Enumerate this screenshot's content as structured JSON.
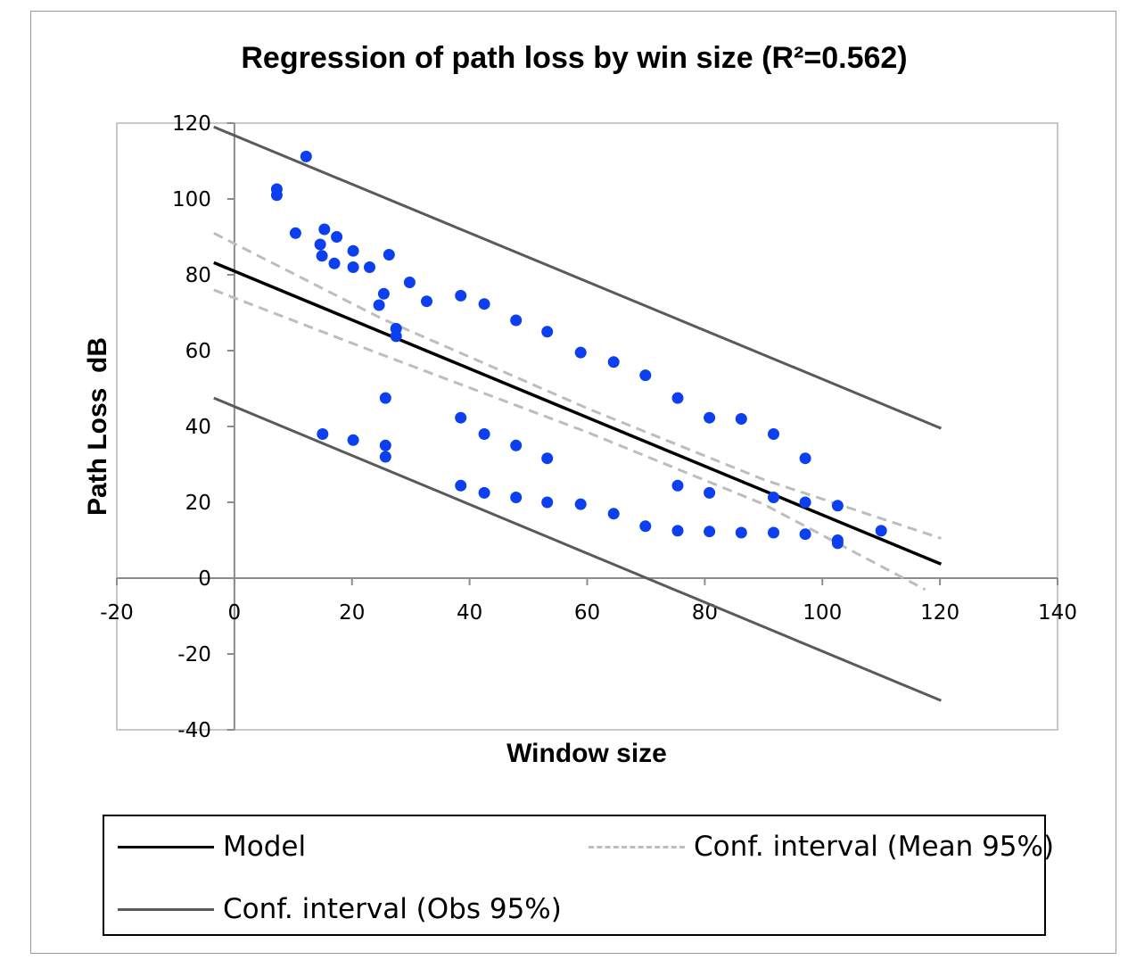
{
  "chart_data": {
    "type": "scatter",
    "title": "Regression of path loss by win size (R²=0.562)",
    "xlabel": "Window size",
    "ylabel": "Path Loss  dB",
    "xlim": [
      -20,
      140
    ],
    "ylim": [
      -40,
      120
    ],
    "xticks": [
      "-20",
      "0",
      "20",
      "40",
      "60",
      "80",
      "100",
      "120",
      "140"
    ],
    "yticks": [
      "-40",
      "-20",
      "0",
      "20",
      "40",
      "60",
      "80",
      "100",
      "120"
    ],
    "grid": false,
    "legend_position": "bottom",
    "series": [
      {
        "kind": "points",
        "color": "#0b3ff0",
        "x": [
          7.2,
          7.2,
          12.2,
          10.4,
          15.3,
          14.6,
          14.9,
          17.4,
          17.0,
          20.2,
          20.2,
          23.0,
          26.3,
          25.4,
          24.6,
          29.8,
          27.5,
          27.5,
          32.7,
          38.5,
          42.5,
          47.9,
          53.2,
          58.9,
          64.5,
          69.9,
          75.4,
          80.8,
          86.2,
          91.7,
          97.1,
          25.7,
          15.0,
          20.2,
          25.7,
          25.7,
          38.5,
          42.5,
          47.9,
          53.2,
          38.5,
          42.5,
          47.9,
          53.2,
          58.9,
          64.5,
          69.9,
          75.4,
          80.8,
          86.2,
          91.7,
          97.1,
          102.6,
          102.6,
          75.4,
          80.8,
          91.7,
          97.1,
          102.6,
          110.0
        ],
        "y": [
          102.6,
          101.0,
          111.2,
          91.0,
          92.0,
          88.0,
          85.0,
          90.0,
          83.0,
          86.3,
          82.0,
          82.0,
          85.3,
          75.0,
          72.0,
          78.0,
          65.8,
          63.8,
          73.0,
          74.5,
          72.3,
          68.0,
          65.0,
          59.5,
          57.0,
          53.5,
          47.5,
          42.3,
          42.0,
          38.0,
          31.6,
          47.5,
          38.0,
          36.4,
          35.0,
          32.0,
          42.3,
          38.0,
          35.0,
          31.6,
          24.4,
          22.5,
          21.3,
          20.0,
          19.5,
          17.0,
          13.7,
          12.5,
          12.3,
          12.0,
          12.0,
          11.6,
          10.0,
          9.2,
          24.4,
          22.5,
          21.3,
          20.0,
          19.1,
          12.5
        ]
      },
      {
        "name": "Model",
        "kind": "line",
        "color": "#000000",
        "dash": "solid",
        "x": [
          -3.5,
          120.2
        ],
        "y": [
          83.2,
          3.7
        ]
      },
      {
        "name": "Conf. interval (Mean 95%)",
        "kind": "line",
        "color": "#bdbdbd",
        "dash": "dashed",
        "x": [
          -3.5,
          25,
          60,
          90,
          120.2
        ],
        "y": [
          91.0,
          68.5,
          44.8,
          26.0,
          10.5
        ]
      },
      {
        "name": "",
        "kind": "line",
        "color": "#bdbdbd",
        "dash": "dashed",
        "x": [
          -3.5,
          25,
          60,
          90,
          117.5
        ],
        "y": [
          76.0,
          59.0,
          38.5,
          19.5,
          -3.0
        ]
      },
      {
        "name": "Conf. interval (Obs 95%)",
        "kind": "line",
        "color": "#5a5a5a",
        "dash": "solid",
        "x": [
          -3.5,
          120.2
        ],
        "y": [
          119.0,
          39.5
        ]
      },
      {
        "name": "",
        "kind": "line",
        "color": "#5a5a5a",
        "dash": "solid",
        "x": [
          -3.5,
          120.2
        ],
        "y": [
          47.5,
          -32.3
        ]
      }
    ]
  },
  "legend": {
    "model_label": "Model",
    "mean_label": "Conf. interval (Mean 95%)",
    "obs_label": "Conf. interval (Obs 95%)"
  }
}
